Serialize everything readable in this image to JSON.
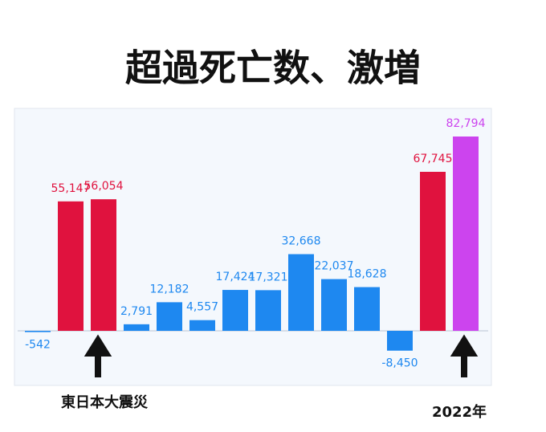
{
  "chart_data": {
    "type": "bar",
    "title": "超過死亡数、激増",
    "categories": [
      null,
      null,
      null,
      null,
      null,
      null,
      null,
      null,
      null,
      null,
      null,
      null,
      null,
      null
    ],
    "values": [
      -542,
      55147,
      56054,
      2791,
      12182,
      4557,
      17424,
      17321,
      32668,
      22037,
      18628,
      -8450,
      67745,
      82794
    ],
    "value_labels": [
      "-542",
      "55,147",
      "56,054",
      "2,791",
      "12,182",
      "4,557",
      "17,424",
      "17,321",
      "32,668",
      "22,037",
      "18,628",
      "-8,450",
      "67,745",
      "82,794"
    ],
    "colors": [
      "#1e88f0",
      "#e0123e",
      "#e0123e",
      "#1e88f0",
      "#1e88f0",
      "#1e88f0",
      "#1e88f0",
      "#1e88f0",
      "#1e88f0",
      "#1e88f0",
      "#1e88f0",
      "#1e88f0",
      "#e0123e",
      "#cc44ee"
    ],
    "annotations": [
      "東日本大震災",
      "2022年"
    ]
  }
}
